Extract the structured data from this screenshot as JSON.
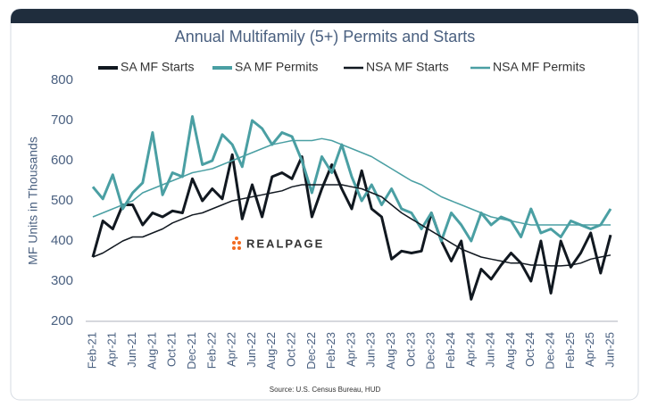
{
  "chart_data": {
    "type": "line",
    "title": "Annual Multifamily (5+) Permits and Starts",
    "y_label": "MF Units in Thousands",
    "logo": "REALPAGE",
    "source": "Source: U.S. Census Bureau, HUD",
    "categories": [
      "Feb-21",
      null,
      "Apr-21",
      null,
      "Jun-21",
      null,
      "Aug-21",
      null,
      "Oct-21",
      null,
      "Dec-21",
      null,
      "Feb-22",
      null,
      "Apr-22",
      null,
      "Jun-22",
      null,
      "Aug-22",
      null,
      "Oct-22",
      null,
      "Dec-22",
      null,
      "Feb-23",
      null,
      "Apr-23",
      null,
      "Jun-23",
      null,
      "Aug-23",
      null,
      "Oct-23",
      null,
      "Dec-23",
      null,
      "Feb-24",
      null,
      "Apr-24",
      null,
      "Jun-24",
      null,
      "Aug-24",
      null,
      "Oct-24",
      null,
      "Dec-24",
      null,
      "Feb-25",
      null,
      "Apr-25",
      null,
      "Jun-25"
    ],
    "series": [
      {
        "name": "SA MF Starts",
        "color": "#111820",
        "width": 3,
        "values": [
          360,
          450,
          430,
          490,
          490,
          440,
          470,
          460,
          475,
          470,
          555,
          500,
          530,
          505,
          615,
          455,
          540,
          460,
          560,
          570,
          555,
          610,
          460,
          530,
          590,
          530,
          480,
          575,
          480,
          460,
          355,
          375,
          370,
          375,
          470,
          400,
          350,
          400,
          255,
          330,
          305,
          340,
          370,
          345,
          300,
          400,
          270,
          400,
          335,
          370,
          420,
          320,
          415
        ]
      },
      {
        "name": "SA MF Permits",
        "color": "#4a9fa3",
        "width": 3,
        "values": [
          535,
          505,
          565,
          480,
          520,
          545,
          670,
          515,
          570,
          560,
          710,
          590,
          600,
          665,
          640,
          585,
          700,
          680,
          640,
          670,
          660,
          600,
          520,
          610,
          570,
          640,
          560,
          500,
          540,
          490,
          530,
          480,
          470,
          430,
          470,
          400,
          470,
          440,
          400,
          470,
          440,
          460,
          450,
          410,
          480,
          420,
          430,
          410,
          450,
          440,
          430,
          440,
          480
        ]
      },
      {
        "name": "NSA MF Starts",
        "color": "#111820",
        "width": 1.5,
        "values": [
          360,
          370,
          385,
          400,
          410,
          410,
          420,
          430,
          445,
          455,
          465,
          470,
          480,
          490,
          500,
          505,
          510,
          515,
          520,
          525,
          535,
          540,
          540,
          540,
          540,
          540,
          535,
          530,
          520,
          510,
          490,
          470,
          455,
          440,
          425,
          410,
          395,
          380,
          370,
          360,
          355,
          350,
          345,
          345,
          340,
          340,
          338,
          338,
          340,
          345,
          355,
          360,
          365
        ]
      },
      {
        "name": "NSA MF Permits",
        "color": "#4a9fa3",
        "width": 1.5,
        "values": [
          460,
          470,
          480,
          490,
          500,
          520,
          530,
          540,
          550,
          560,
          570,
          575,
          580,
          590,
          600,
          610,
          620,
          630,
          640,
          645,
          650,
          650,
          650,
          655,
          650,
          640,
          630,
          620,
          610,
          595,
          580,
          565,
          550,
          540,
          525,
          510,
          500,
          490,
          480,
          470,
          460,
          455,
          450,
          445,
          440,
          440,
          440,
          440,
          440,
          440,
          440,
          440,
          440
        ]
      }
    ],
    "ylim": [
      200,
      800
    ],
    "yticks": [
      200,
      300,
      400,
      500,
      600,
      700,
      800
    ],
    "grid": false
  }
}
